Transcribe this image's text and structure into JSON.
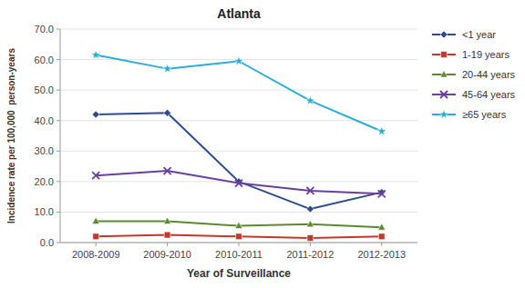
{
  "chart_data": {
    "type": "line",
    "title": "Atlanta",
    "xlabel": "Year of Surveillance",
    "ylabel": "Incidence rate per 100,000  person-years",
    "categories": [
      "2008-2009",
      "2009-2010",
      "2010-2011",
      "2011-2012",
      "2012-2013"
    ],
    "series": [
      {
        "name": "<1 year",
        "color": "#2E4B8F",
        "marker": "diamond",
        "values": [
          42,
          42.5,
          20,
          11,
          16.5
        ]
      },
      {
        "name": "1-19 years",
        "color": "#C0392B",
        "marker": "square",
        "values": [
          2.0,
          2.5,
          2.0,
          1.5,
          2.0
        ]
      },
      {
        "name": "20-44 years",
        "color": "#5B8A2D",
        "marker": "triangle",
        "values": [
          7.0,
          7.0,
          5.5,
          6.0,
          5.0
        ]
      },
      {
        "name": "45-64 years",
        "color": "#6A3FA0",
        "marker": "x",
        "values": [
          22.0,
          23.5,
          19.5,
          17.0,
          16.0
        ]
      },
      {
        "name": "≥65 years",
        "color": "#2AAED8",
        "marker": "star",
        "values": [
          61.5,
          57.0,
          59.5,
          46.5,
          36.5
        ]
      }
    ],
    "ylim": [
      0,
      70
    ],
    "yticks": [
      {
        "value": 0.0,
        "label": "0.0"
      },
      {
        "value": 10.0,
        "label": "10.0"
      },
      {
        "value": 20.0,
        "label": "20.0"
      },
      {
        "value": 30.0,
        "label": "30.0"
      },
      {
        "value": 40.0,
        "label": "40.0"
      },
      {
        "value": 50.0,
        "label": "50.0"
      },
      {
        "value": 60.0,
        "label": "60.0"
      },
      {
        "value": 70.0,
        "label": "70.0"
      }
    ],
    "grid": true,
    "legend": "right"
  }
}
